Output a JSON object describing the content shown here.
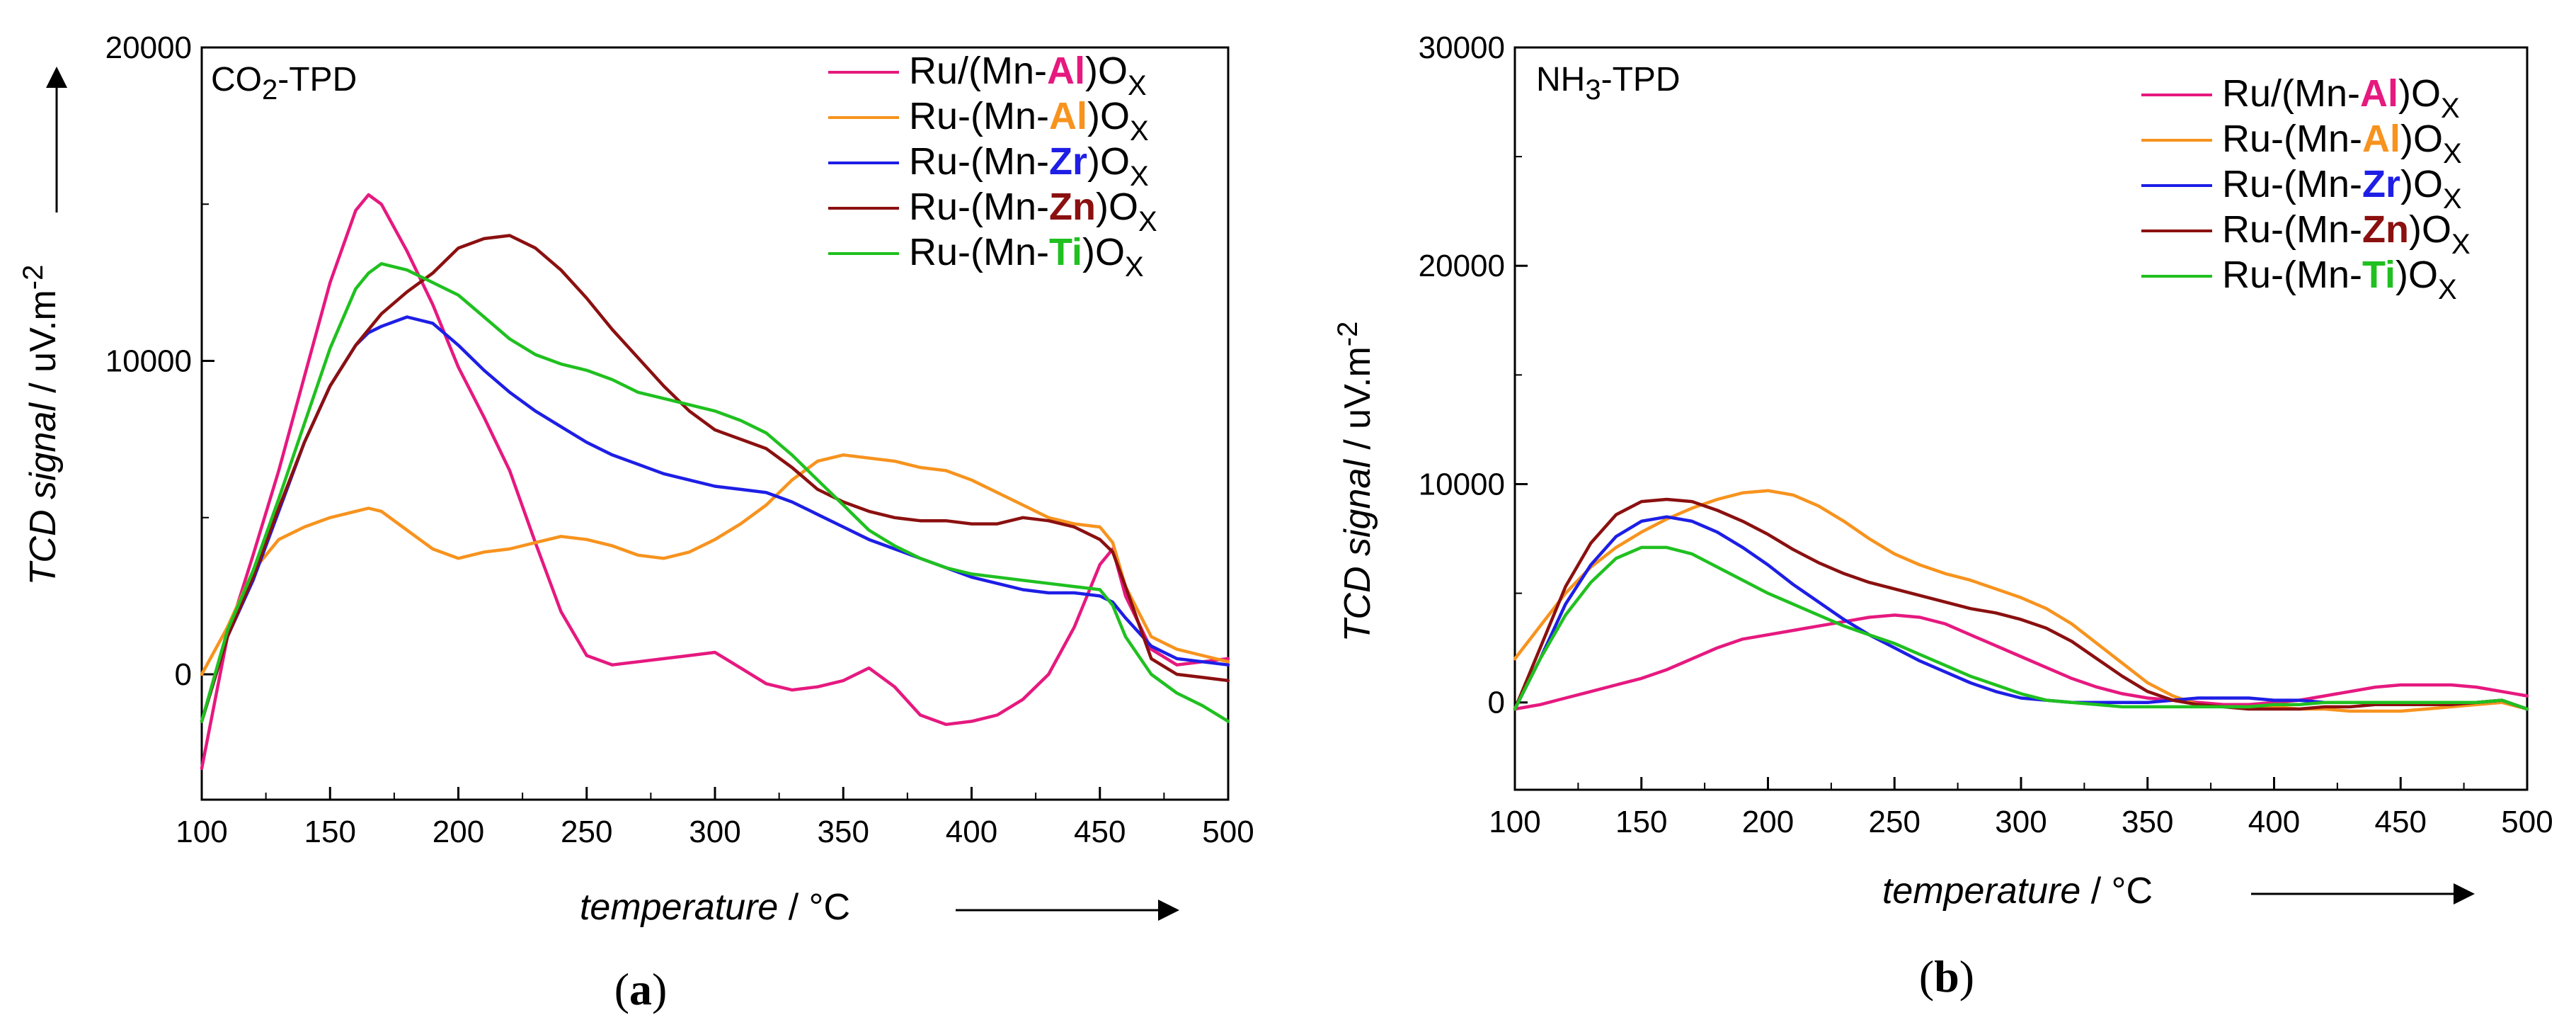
{
  "colors": {
    "pink": "#e6197f",
    "orange": "#f7931e",
    "blue": "#1e1ee6",
    "darkred": "#8b1010",
    "green": "#20c020"
  },
  "chart_data": [
    {
      "type": "line",
      "panel": "(a)",
      "caption_open": "(",
      "caption_letter": "a",
      "caption_close": ")",
      "title_main": "CO",
      "title_sub": "2",
      "title_rest": "-TPD",
      "xlabel_italic": "temperature",
      "xlabel_unit": " / °C",
      "ylabel_italic": "TCD signal",
      "ylabel_unit": " / uV.m",
      "ylabel_sup": "-2",
      "xlim": [
        100,
        500
      ],
      "ylim": [
        -4000,
        20000
      ],
      "xticks": [
        100,
        150,
        200,
        250,
        300,
        350,
        400,
        450,
        500
      ],
      "yticks": [
        0,
        10000,
        20000
      ],
      "x": [
        100,
        110,
        120,
        130,
        140,
        150,
        160,
        165,
        170,
        180,
        190,
        200,
        210,
        220,
        230,
        240,
        250,
        260,
        270,
        280,
        290,
        300,
        310,
        320,
        330,
        340,
        350,
        360,
        370,
        380,
        390,
        400,
        410,
        420,
        430,
        440,
        450,
        455,
        460,
        470,
        480,
        490,
        500
      ],
      "series": [
        {
          "name_pre": "Ru/(Mn-",
          "name_metal": "Al",
          "name_post": ")O",
          "name_sub": "X",
          "color": "#e6197f",
          "values": [
            -3000,
            1200,
            3800,
            6500,
            9500,
            12500,
            14800,
            15300,
            15000,
            13500,
            11800,
            9800,
            8200,
            6500,
            4200,
            2000,
            600,
            300,
            400,
            500,
            600,
            700,
            200,
            -300,
            -500,
            -400,
            -200,
            200,
            -400,
            -1300,
            -1600,
            -1500,
            -1300,
            -800,
            0,
            1500,
            3500,
            4000,
            2500,
            800,
            300,
            400,
            500
          ]
        },
        {
          "name_pre": "Ru-(Mn-",
          "name_metal": "Al",
          "name_post": ")O",
          "name_sub": "X",
          "color": "#f7931e",
          "values": [
            0,
            1500,
            3300,
            4300,
            4700,
            5000,
            5200,
            5300,
            5200,
            4600,
            4000,
            3700,
            3900,
            4000,
            4200,
            4400,
            4300,
            4100,
            3800,
            3700,
            3900,
            4300,
            4800,
            5400,
            6200,
            6800,
            7000,
            6900,
            6800,
            6600,
            6500,
            6200,
            5800,
            5400,
            5000,
            4800,
            4700,
            4200,
            2800,
            1200,
            800,
            600,
            400
          ]
        },
        {
          "name_pre": "Ru-(Mn-",
          "name_metal": "Zr",
          "name_post": ")O",
          "name_sub": "X",
          "color": "#1e1ee6",
          "values": [
            -1500,
            1200,
            3000,
            5200,
            7400,
            9200,
            10500,
            10900,
            11100,
            11400,
            11200,
            10500,
            9700,
            9000,
            8400,
            7900,
            7400,
            7000,
            6700,
            6400,
            6200,
            6000,
            5900,
            5800,
            5500,
            5100,
            4700,
            4300,
            4000,
            3700,
            3400,
            3100,
            2900,
            2700,
            2600,
            2600,
            2500,
            2300,
            1800,
            900,
            500,
            400,
            300
          ]
        },
        {
          "name_pre": "Ru-(Mn-",
          "name_metal": "Zn",
          "name_post": ")O",
          "name_sub": "X",
          "color": "#8b1010",
          "values": [
            -1500,
            1200,
            3100,
            5300,
            7400,
            9200,
            10500,
            11000,
            11500,
            12200,
            12800,
            13600,
            13900,
            14000,
            13600,
            12900,
            12000,
            11000,
            10100,
            9200,
            8400,
            7800,
            7500,
            7200,
            6600,
            5900,
            5500,
            5200,
            5000,
            4900,
            4900,
            4800,
            4800,
            5000,
            4900,
            4700,
            4300,
            3900,
            2800,
            500,
            0,
            -100,
            -200
          ]
        },
        {
          "name_pre": "Ru-(Mn-",
          "name_metal": "Ti",
          "name_post": ")O",
          "name_sub": "X",
          "color": "#20c020",
          "values": [
            -1500,
            1400,
            3300,
            5600,
            8000,
            10400,
            12300,
            12800,
            13100,
            12900,
            12500,
            12100,
            11400,
            10700,
            10200,
            9900,
            9700,
            9400,
            9000,
            8800,
            8600,
            8400,
            8100,
            7700,
            7000,
            6200,
            5400,
            4600,
            4100,
            3700,
            3400,
            3200,
            3100,
            3000,
            2900,
            2800,
            2700,
            2200,
            1200,
            0,
            -600,
            -1000,
            -1500
          ]
        }
      ]
    },
    {
      "type": "line",
      "panel": "(b)",
      "caption_open": "(",
      "caption_letter": "b",
      "caption_close": ")",
      "title_main": "NH",
      "title_sub": "3",
      "title_rest": "-TPD",
      "xlabel_italic": "temperature",
      "xlabel_unit": " / °C",
      "ylabel_italic": "TCD signal",
      "ylabel_unit": " / uV.m",
      "ylabel_sup": "-2",
      "xlim": [
        100,
        500
      ],
      "ylim": [
        -4000,
        30000
      ],
      "xticks": [
        100,
        150,
        200,
        250,
        300,
        350,
        400,
        450,
        500
      ],
      "yticks": [
        0,
        10000,
        20000,
        30000
      ],
      "x": [
        100,
        110,
        120,
        130,
        140,
        150,
        160,
        170,
        180,
        190,
        200,
        210,
        220,
        230,
        240,
        250,
        260,
        270,
        280,
        290,
        300,
        310,
        320,
        330,
        340,
        350,
        360,
        370,
        380,
        390,
        400,
        410,
        420,
        430,
        440,
        450,
        460,
        470,
        480,
        490,
        500
      ],
      "series": [
        {
          "name_pre": "Ru/(Mn-",
          "name_metal": "Al",
          "name_post": ")O",
          "name_sub": "X",
          "color": "#e6197f",
          "values": [
            -300,
            -100,
            200,
            500,
            800,
            1100,
            1500,
            2000,
            2500,
            2900,
            3100,
            3300,
            3500,
            3700,
            3900,
            4000,
            3900,
            3600,
            3100,
            2600,
            2100,
            1600,
            1100,
            700,
            400,
            200,
            100,
            0,
            -100,
            -100,
            0,
            100,
            300,
            500,
            700,
            800,
            800,
            800,
            700,
            500,
            300
          ]
        },
        {
          "name_pre": "Ru-(Mn-",
          "name_metal": "Al",
          "name_post": ")O",
          "name_sub": "X",
          "color": "#f7931e",
          "values": [
            2000,
            3500,
            5000,
            6200,
            7100,
            7800,
            8400,
            8900,
            9300,
            9600,
            9700,
            9500,
            9000,
            8300,
            7500,
            6800,
            6300,
            5900,
            5600,
            5200,
            4800,
            4300,
            3600,
            2700,
            1800,
            900,
            300,
            -100,
            -200,
            -200,
            -200,
            -300,
            -300,
            -400,
            -400,
            -400,
            -300,
            -200,
            -100,
            0,
            -300
          ]
        },
        {
          "name_pre": "Ru-(Mn-",
          "name_metal": "Zr",
          "name_post": ")O",
          "name_sub": "X",
          "color": "#1e1ee6",
          "values": [
            -300,
            2000,
            4500,
            6300,
            7600,
            8300,
            8500,
            8300,
            7800,
            7100,
            6300,
            5400,
            4600,
            3800,
            3100,
            2500,
            1900,
            1400,
            900,
            500,
            200,
            100,
            0,
            0,
            0,
            0,
            100,
            200,
            200,
            200,
            100,
            100,
            0,
            0,
            0,
            0,
            0,
            0,
            0,
            100,
            -300
          ]
        },
        {
          "name_pre": "Ru-(Mn-",
          "name_metal": "Zn",
          "name_post": ")O",
          "name_sub": "X",
          "color": "#8b1010",
          "values": [
            -300,
            2500,
            5300,
            7300,
            8600,
            9200,
            9300,
            9200,
            8800,
            8300,
            7700,
            7000,
            6400,
            5900,
            5500,
            5200,
            4900,
            4600,
            4300,
            4100,
            3800,
            3400,
            2800,
            2000,
            1200,
            500,
            100,
            -100,
            -200,
            -300,
            -300,
            -300,
            -200,
            -200,
            -100,
            -100,
            -100,
            -100,
            0,
            100,
            -300
          ]
        },
        {
          "name_pre": "Ru-(Mn-",
          "name_metal": "Ti",
          "name_post": ")O",
          "name_sub": "X",
          "color": "#20c020",
          "values": [
            -300,
            2000,
            4000,
            5500,
            6600,
            7100,
            7100,
            6800,
            6200,
            5600,
            5000,
            4500,
            4000,
            3500,
            3100,
            2700,
            2200,
            1700,
            1200,
            800,
            400,
            100,
            0,
            -100,
            -200,
            -200,
            -200,
            -200,
            -200,
            -200,
            -100,
            -100,
            0,
            0,
            0,
            0,
            0,
            0,
            0,
            100,
            -300
          ]
        }
      ]
    }
  ]
}
